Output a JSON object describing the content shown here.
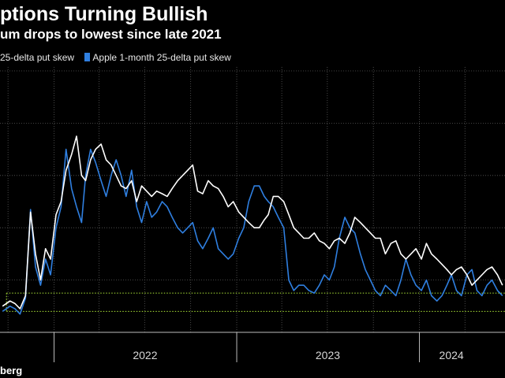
{
  "title": "ptions Turning Bullish",
  "subtitle": "um drops to lowest since late 2021",
  "source": "berg",
  "chart_data": {
    "type": "line",
    "title": "ptions Turning Bullish",
    "subtitle": "um drops to lowest since late 2021",
    "xlabel": "",
    "ylabel": "",
    "x_ticks": [
      "2022",
      "2023",
      "2024"
    ],
    "xlim": [
      "2021-09-15",
      "2024-06-20"
    ],
    "ylim": [
      0,
      100
    ],
    "grid": true,
    "legend_position": "top-left",
    "series": [
      {
        "name": "25-delta put skew",
        "color": "#ffffff",
        "x": [
          "2021-09-20",
          "2021-10-05",
          "2021-10-15",
          "2021-10-25",
          "2021-11-05",
          "2021-11-15",
          "2021-11-25",
          "2021-12-05",
          "2021-12-15",
          "2021-12-25",
          "2022-01-05",
          "2022-01-15",
          "2022-01-25",
          "2022-02-05",
          "2022-02-15",
          "2022-02-25",
          "2022-03-05",
          "2022-03-15",
          "2022-03-25",
          "2022-04-05",
          "2022-04-15",
          "2022-04-25",
          "2022-05-05",
          "2022-05-15",
          "2022-05-25",
          "2022-06-05",
          "2022-06-15",
          "2022-06-25",
          "2022-07-05",
          "2022-07-15",
          "2022-07-25",
          "2022-08-05",
          "2022-08-15",
          "2022-08-25",
          "2022-09-05",
          "2022-09-15",
          "2022-09-25",
          "2022-10-05",
          "2022-10-15",
          "2022-10-25",
          "2022-11-05",
          "2022-11-15",
          "2022-11-25",
          "2022-12-05",
          "2022-12-15",
          "2022-12-25",
          "2023-01-05",
          "2023-01-15",
          "2023-01-25",
          "2023-02-05",
          "2023-02-15",
          "2023-02-25",
          "2023-03-05",
          "2023-03-15",
          "2023-03-25",
          "2023-04-05",
          "2023-04-15",
          "2023-04-25",
          "2023-05-05",
          "2023-05-15",
          "2023-05-25",
          "2023-06-05",
          "2023-06-15",
          "2023-06-25",
          "2023-07-05",
          "2023-07-15",
          "2023-07-25",
          "2023-08-05",
          "2023-08-15",
          "2023-08-25",
          "2023-09-05",
          "2023-09-15",
          "2023-09-25",
          "2023-10-05",
          "2023-10-15",
          "2023-10-25",
          "2023-11-05",
          "2023-11-15",
          "2023-11-25",
          "2023-12-05",
          "2023-12-15",
          "2023-12-25",
          "2024-01-05",
          "2024-01-15",
          "2024-01-25",
          "2024-02-05",
          "2024-02-15",
          "2024-02-25",
          "2024-03-05",
          "2024-03-15",
          "2024-03-25",
          "2024-04-05",
          "2024-04-15",
          "2024-04-25",
          "2024-05-05",
          "2024-05-15",
          "2024-05-25",
          "2024-06-05",
          "2024-06-15"
        ],
        "values": [
          10,
          12,
          11,
          9,
          14,
          46,
          30,
          20,
          32,
          28,
          45,
          50,
          62,
          68,
          75,
          60,
          58,
          66,
          70,
          72,
          66,
          64,
          60,
          56,
          55,
          58,
          50,
          56,
          54,
          52,
          54,
          53,
          52,
          55,
          58,
          60,
          62,
          64,
          54,
          53,
          58,
          56,
          55,
          52,
          48,
          50,
          46,
          44,
          42,
          40,
          40,
          43,
          45,
          52,
          52,
          50,
          45,
          40,
          38,
          36,
          36,
          38,
          35,
          34,
          32,
          35,
          36,
          34,
          38,
          44,
          42,
          40,
          38,
          36,
          36,
          30,
          34,
          35,
          30,
          28,
          30,
          32,
          28,
          34,
          30,
          28,
          26,
          24,
          22,
          24,
          25,
          22,
          18,
          20,
          22,
          24,
          25,
          22,
          18
        ]
      },
      {
        "name": "Apple 1-month 25-delta put skew",
        "color": "#2f7fe0",
        "x": [
          "2021-09-20",
          "2021-10-05",
          "2021-10-15",
          "2021-10-25",
          "2021-11-05",
          "2021-11-15",
          "2021-11-25",
          "2021-12-05",
          "2021-12-15",
          "2021-12-25",
          "2022-01-05",
          "2022-01-15",
          "2022-01-25",
          "2022-02-05",
          "2022-02-15",
          "2022-02-25",
          "2022-03-05",
          "2022-03-15",
          "2022-03-25",
          "2022-04-05",
          "2022-04-15",
          "2022-04-25",
          "2022-05-05",
          "2022-05-15",
          "2022-05-25",
          "2022-06-05",
          "2022-06-15",
          "2022-06-25",
          "2022-07-05",
          "2022-07-15",
          "2022-07-25",
          "2022-08-05",
          "2022-08-15",
          "2022-08-25",
          "2022-09-05",
          "2022-09-15",
          "2022-09-25",
          "2022-10-05",
          "2022-10-15",
          "2022-10-25",
          "2022-11-05",
          "2022-11-15",
          "2022-11-25",
          "2022-12-05",
          "2022-12-15",
          "2022-12-25",
          "2023-01-05",
          "2023-01-15",
          "2023-01-25",
          "2023-02-05",
          "2023-02-15",
          "2023-02-25",
          "2023-03-05",
          "2023-03-15",
          "2023-03-25",
          "2023-04-05",
          "2023-04-15",
          "2023-04-25",
          "2023-05-05",
          "2023-05-15",
          "2023-05-25",
          "2023-06-05",
          "2023-06-15",
          "2023-06-25",
          "2023-07-05",
          "2023-07-15",
          "2023-07-25",
          "2023-08-05",
          "2023-08-15",
          "2023-08-25",
          "2023-09-05",
          "2023-09-15",
          "2023-09-25",
          "2023-10-05",
          "2023-10-15",
          "2023-10-25",
          "2023-11-05",
          "2023-11-15",
          "2023-11-25",
          "2023-12-05",
          "2023-12-15",
          "2023-12-25",
          "2024-01-05",
          "2024-01-15",
          "2024-01-25",
          "2024-02-05",
          "2024-02-15",
          "2024-02-25",
          "2024-03-05",
          "2024-03-15",
          "2024-03-25",
          "2024-04-05",
          "2024-04-15",
          "2024-04-25",
          "2024-05-05",
          "2024-05-15",
          "2024-05-25",
          "2024-06-05",
          "2024-06-15"
        ],
        "values": [
          8,
          10,
          9,
          7,
          13,
          47,
          25,
          18,
          28,
          22,
          40,
          48,
          70,
          55,
          48,
          42,
          60,
          70,
          65,
          58,
          52,
          60,
          66,
          60,
          52,
          62,
          48,
          42,
          50,
          44,
          46,
          50,
          48,
          44,
          40,
          38,
          40,
          42,
          35,
          32,
          36,
          40,
          32,
          30,
          28,
          30,
          36,
          40,
          50,
          56,
          56,
          52,
          50,
          48,
          44,
          40,
          20,
          16,
          18,
          18,
          16,
          15,
          18,
          22,
          20,
          25,
          36,
          44,
          40,
          38,
          30,
          24,
          20,
          16,
          14,
          18,
          16,
          14,
          20,
          28,
          22,
          18,
          16,
          20,
          14,
          12,
          14,
          18,
          22,
          16,
          14,
          22,
          24,
          16,
          14,
          18,
          20,
          16,
          14
        ]
      }
    ],
    "reference_lines": [
      {
        "y": 15,
        "color": "#9acd32",
        "style": "dotted"
      },
      {
        "y": 8,
        "color": "#9acd32",
        "style": "dotted"
      }
    ]
  }
}
